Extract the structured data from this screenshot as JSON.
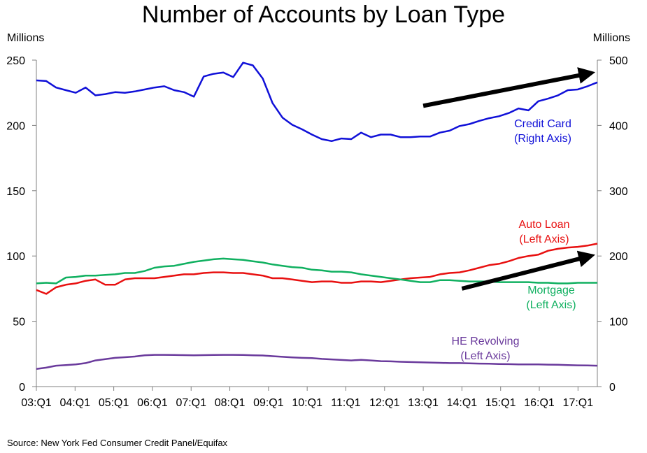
{
  "chart_data": {
    "type": "line",
    "title": "Number of Accounts by Loan Type",
    "left_axis_unit": "Millions",
    "right_axis_unit": "Millions",
    "source": "Source: New York Fed Consumer Credit Panel/Equifax",
    "x_tick_labels": [
      "03:Q1",
      "04:Q1",
      "05:Q1",
      "06:Q1",
      "07:Q1",
      "08:Q1",
      "09:Q1",
      "10:Q1",
      "11:Q1",
      "12:Q1",
      "13:Q1",
      "14:Q1",
      "15:Q1",
      "16:Q1",
      "17:Q1"
    ],
    "x_range": [
      "2003:Q1",
      "2017:Q3"
    ],
    "left_ylim": [
      0,
      250
    ],
    "left_yticks": [
      0,
      50,
      100,
      150,
      200,
      250
    ],
    "right_ylim": [
      0,
      500
    ],
    "right_yticks": [
      0,
      100,
      200,
      300,
      400,
      500
    ],
    "grid": false,
    "series": [
      {
        "name_lines": [
          "Credit Card",
          "(Right Axis)"
        ],
        "axis": "right",
        "color": "#1010d8",
        "values": [
          469,
          468,
          458,
          454,
          450,
          458,
          446,
          448,
          451,
          450,
          452,
          455,
          458,
          460,
          454,
          451,
          444,
          475,
          479,
          481,
          474,
          496,
          492,
          472,
          434,
          412,
          401,
          394,
          386,
          379,
          376,
          380,
          379,
          389,
          382,
          386,
          386,
          382,
          382,
          383,
          383,
          389,
          392,
          399,
          402,
          407,
          411,
          414,
          419,
          426,
          423,
          437,
          441,
          446,
          454,
          455,
          460,
          466
        ]
      },
      {
        "name_lines": [
          "Auto Loan",
          "(Left Axis)"
        ],
        "axis": "left",
        "color": "#e81010",
        "values": [
          74,
          71,
          76,
          78,
          79,
          81,
          82,
          78,
          78,
          82,
          83,
          83,
          83,
          84,
          85,
          86,
          86,
          87,
          87.5,
          87.5,
          87,
          87,
          86,
          85,
          83,
          83,
          82,
          81,
          80,
          80.5,
          80.5,
          79.5,
          79.5,
          80.5,
          80.5,
          80,
          81,
          82,
          83,
          83.5,
          84,
          86,
          87,
          87.5,
          89,
          91,
          93,
          94,
          96,
          98.5,
          100,
          101,
          104,
          105.5,
          106.5,
          107,
          108,
          109.5
        ]
      },
      {
        "name_lines": [
          "Mortgage",
          "(Left Axis)"
        ],
        "axis": "left",
        "color": "#10b060",
        "values": [
          79,
          79.5,
          79,
          83.5,
          84,
          85,
          85,
          85.5,
          86,
          87,
          87,
          88.5,
          91,
          92,
          92.5,
          94,
          95.5,
          96.5,
          97.5,
          98,
          97.5,
          97,
          96,
          95,
          93.5,
          92.5,
          91.5,
          91,
          89.5,
          89,
          88,
          88,
          87.5,
          86,
          85,
          84,
          83,
          82,
          81,
          80,
          80,
          81.5,
          81.5,
          81,
          80.5,
          80.5,
          80.5,
          80,
          80,
          80,
          80,
          79.5,
          79.5,
          79,
          79,
          79.5,
          79.5,
          79.5
        ]
      },
      {
        "name_lines": [
          "HE Revolving",
          "(Left Axis)"
        ],
        "axis": "left",
        "color": "#6a3a9c",
        "values": [
          13.5,
          14.5,
          16,
          16.5,
          17,
          18,
          20,
          21,
          22,
          22.5,
          23,
          24,
          24.3,
          24.3,
          24.2,
          24.1,
          24,
          24.1,
          24.2,
          24.3,
          24.3,
          24.2,
          24,
          23.8,
          23.3,
          22.8,
          22.3,
          22,
          21.8,
          21.2,
          20.8,
          20.4,
          20,
          20.5,
          20,
          19.5,
          19.3,
          19,
          18.8,
          18.6,
          18.4,
          18.2,
          18,
          18,
          17.8,
          17.6,
          17.5,
          17.3,
          17.2,
          17,
          17,
          17,
          16.8,
          16.7,
          16.5,
          16.3,
          16.2,
          16
        ]
      }
    ],
    "annotations": [
      {
        "type": "arrow",
        "color": "#000000",
        "from": [
          "2013:Q1",
          430
        ],
        "to": [
          "2017:Q3",
          480
        ],
        "axis": "right"
      },
      {
        "type": "arrow",
        "color": "#000000",
        "from": [
          "2014:Q1",
          75
        ],
        "to": [
          "2017:Q3",
          100
        ],
        "axis": "left"
      }
    ]
  }
}
